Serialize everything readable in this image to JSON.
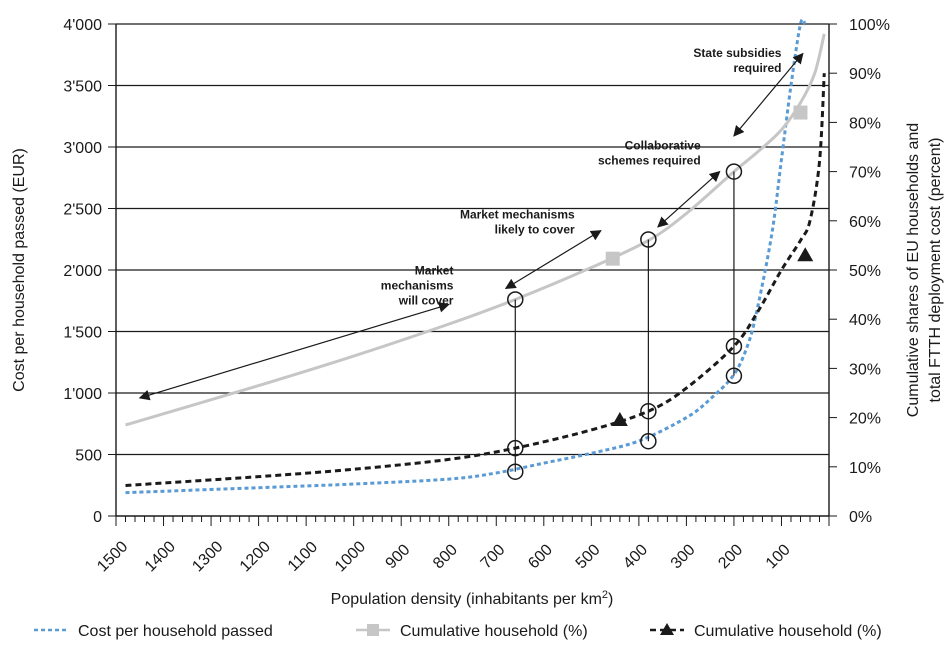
{
  "chart_data": {
    "type": "line",
    "xlabel_main": "Population density (inhabitants per km",
    "xlabel_sup": "2",
    "xlabel_tail": ")",
    "ylabel_left": "Cost per household passed (EUR)",
    "ylabel_right_line1": "Cumulative shares of EU households and",
    "ylabel_right_line2": "total FTTH deployment cost (percent)",
    "x_reversed": true,
    "xlim": [
      1500,
      0
    ],
    "ylim_left": [
      0,
      4000
    ],
    "ylim_right": [
      0,
      100
    ],
    "grid": "horizontal",
    "x_ticks": [
      1500,
      1400,
      1300,
      1200,
      1100,
      1000,
      900,
      800,
      700,
      600,
      500,
      400,
      300,
      200,
      100
    ],
    "x_tick_labels": [
      "1500",
      "1400",
      "1300",
      "1200",
      "1100",
      "1000",
      "900",
      "800",
      "700",
      "600",
      "500",
      "400",
      "300",
      "200",
      "100"
    ],
    "y_left_ticks": [
      0,
      500,
      1000,
      1500,
      2000,
      2500,
      3000,
      3500,
      4000
    ],
    "y_left_tick_labels": [
      "0",
      "500",
      "1'000",
      "1'500",
      "2'000",
      "2'500",
      "3'000",
      "3'500",
      "4'000"
    ],
    "y_right_ticks": [
      0,
      10,
      20,
      30,
      40,
      50,
      60,
      70,
      80,
      90,
      100
    ],
    "y_right_tick_labels": [
      "0%",
      "10%",
      "20%",
      "30%",
      "40%",
      "50%",
      "60%",
      "70%",
      "80%",
      "90%",
      "100%"
    ],
    "series": [
      {
        "name": "Cost per household passed",
        "color": "#5b9bd5",
        "style": "dotted",
        "axis": "left",
        "x": [
          1480,
          1200,
          1000,
          800,
          700,
          600,
          500,
          400,
          300,
          250,
          200,
          170,
          150,
          120,
          100,
          80,
          60,
          50
        ],
        "y": [
          190,
          230,
          260,
          300,
          350,
          430,
          510,
          610,
          800,
          950,
          1150,
          1400,
          1700,
          2300,
          2900,
          3500,
          4000,
          4000
        ]
      },
      {
        "name": "Cumulative household (%)",
        "color": "#c6c6c6",
        "style": "solid",
        "axis": "right",
        "x": [
          1480,
          1200,
          1000,
          800,
          660,
          500,
          380,
          300,
          200,
          150,
          100,
          60,
          30,
          10
        ],
        "y": [
          18.5,
          26.5,
          32.5,
          39,
          44,
          50.5,
          56,
          61.5,
          70,
          74,
          78.5,
          84,
          90,
          98
        ],
        "markers": {
          "shape": "square",
          "x": [
            455,
            60
          ],
          "y": [
            52.3,
            82
          ]
        }
      },
      {
        "name": "Cumulative household (%)",
        "color": "#1a1a1a",
        "style": "dashed",
        "axis": "right",
        "x": [
          1480,
          1200,
          1000,
          800,
          660,
          500,
          380,
          300,
          200,
          150,
          100,
          60,
          40,
          20,
          10
        ],
        "y": [
          6.2,
          8,
          9.5,
          11.5,
          13.8,
          17.5,
          21.3,
          26,
          34.5,
          41.5,
          50,
          56,
          60,
          72,
          90
        ],
        "markers": {
          "shape": "triangle",
          "x": [
            440,
            50
          ],
          "y": [
            19.5,
            53
          ]
        }
      }
    ],
    "reference_points": [
      {
        "x": 660,
        "values_right": [
          9,
          13.8,
          44
        ]
      },
      {
        "x": 380,
        "values_right": [
          15.2,
          21.3,
          56.2
        ]
      },
      {
        "x": 200,
        "values_right": [
          28.5,
          34.5,
          70
        ]
      }
    ],
    "annotations": [
      {
        "lines": [
          "Market",
          "mechanisms",
          "will cover"
        ]
      },
      {
        "lines": [
          "Market mechanisms",
          "likely to cover"
        ]
      },
      {
        "lines": [
          "Collaborative",
          "schemes required"
        ]
      },
      {
        "lines": [
          "State subsidies",
          "required"
        ]
      }
    ],
    "legend": {
      "placement": "bottom",
      "items": [
        {
          "label": "Cost per household passed"
        },
        {
          "label": "Cumulative household (%)"
        },
        {
          "label": "Cumulative household (%)"
        }
      ]
    }
  }
}
